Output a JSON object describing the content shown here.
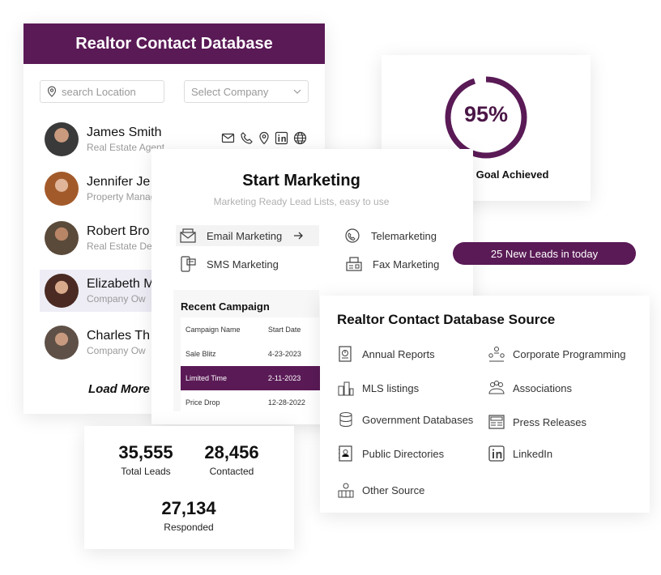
{
  "contacts_card": {
    "title": "Realtor Contact Database",
    "search_placeholder": "search Location",
    "company_placeholder": "Select Company",
    "contacts": [
      {
        "name": "James Smith",
        "role": "Real Estate Agent"
      },
      {
        "name": "Jennifer Je",
        "role": "Property Manager"
      },
      {
        "name": "Robert Bro",
        "role": "Real Estate De"
      },
      {
        "name": "Elizabeth M",
        "role": "Company Ow"
      },
      {
        "name": "Charles Th",
        "role": "Company Ow"
      }
    ],
    "load_more": "Load More",
    "action_icons": [
      "mail-icon",
      "phone-icon",
      "location-icon",
      "linkedin-icon",
      "globe-icon"
    ]
  },
  "goal_card": {
    "percent_label": "95%",
    "progress": 0.95,
    "caption": "Marketing Goal Achieved"
  },
  "marketing_card": {
    "title": "Start Marketing",
    "subtitle": "Marketing Ready Lead Lists, easy to use",
    "options": [
      {
        "label": "Email Marketing",
        "icon": "email-marketing-icon"
      },
      {
        "label": "Telemarketing",
        "icon": "telemarketing-icon"
      },
      {
        "label": "SMS Marketing",
        "icon": "sms-marketing-icon"
      },
      {
        "label": "Fax Marketing",
        "icon": "fax-marketing-icon"
      }
    ],
    "campaign": {
      "title": "Recent Campaign",
      "headers": [
        "Campaign Name",
        "Start Date"
      ],
      "rows": [
        {
          "name": "Sale Blitz",
          "date": "4-23-2023"
        },
        {
          "name": "Limited Time",
          "date": "2-11-2023"
        },
        {
          "name": "Price Drop",
          "date": "12-28-2022"
        }
      ]
    }
  },
  "leads_pill": "25 New Leads in today",
  "stats_card": {
    "total_leads": {
      "value": "35,555",
      "label": "Total Leads"
    },
    "contacted": {
      "value": "28,456",
      "label": "Contacted"
    },
    "responded": {
      "value": "27,134",
      "label": "Responded"
    }
  },
  "source_card": {
    "title": "Realtor Contact Database Source",
    "items": [
      {
        "label": "Annual Reports",
        "icon": "report-icon"
      },
      {
        "label": "Corporate Programming",
        "icon": "corporate-icon"
      },
      {
        "label": "MLS listings",
        "icon": "mls-icon"
      },
      {
        "label": "Associations",
        "icon": "associations-icon"
      },
      {
        "label": "Government Databases",
        "icon": "database-icon"
      },
      {
        "label": "Press Releases",
        "icon": "newspaper-icon"
      },
      {
        "label": "Public Directories",
        "icon": "directory-icon"
      },
      {
        "label": "LinkedIn",
        "icon": "linkedin-icon"
      },
      {
        "label": "Other Source",
        "icon": "other-source-icon"
      }
    ]
  },
  "colors": {
    "brand": "#5a1a56",
    "highlight": "#eeedf6",
    "muted": "#9a9a9a"
  }
}
